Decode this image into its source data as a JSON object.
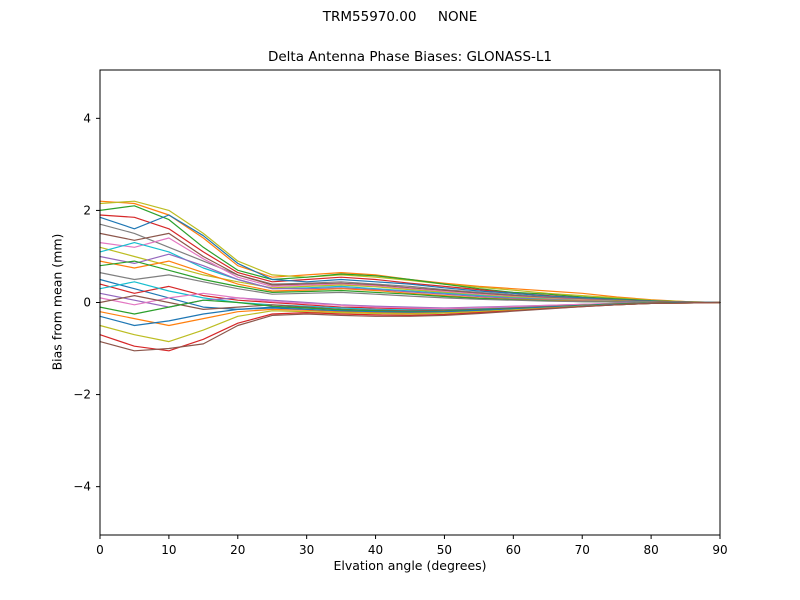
{
  "figure": {
    "suptitle": "TRM55970.00     NONE"
  },
  "chart_data": {
    "type": "line",
    "title": "Delta Antenna Phase Biases: GLONASS-L1",
    "xlabel": "Elvation angle (degrees)",
    "ylabel": "Bias from mean (mm)",
    "xlim": [
      0,
      90
    ],
    "ylim": [
      -5.05,
      5.05
    ],
    "xticks": [
      0,
      10,
      20,
      30,
      40,
      50,
      60,
      70,
      80,
      90
    ],
    "xticklabels": [
      "0",
      "10",
      "20",
      "30",
      "40",
      "50",
      "60",
      "70",
      "80",
      "90"
    ],
    "yticks": [
      -4,
      -2,
      0,
      2,
      4
    ],
    "yticklabels": [
      "−4",
      "−2",
      "0",
      "2",
      "4"
    ],
    "grid": false,
    "legend": "none",
    "x": [
      0,
      5,
      10,
      15,
      20,
      25,
      30,
      35,
      40,
      45,
      50,
      55,
      60,
      65,
      70,
      75,
      80,
      85,
      90
    ],
    "series": [
      {
        "color": "#ff7f0e",
        "values": [
          2.2,
          2.15,
          1.9,
          1.4,
          0.8,
          0.55,
          0.6,
          0.65,
          0.6,
          0.5,
          0.42,
          0.35,
          0.3,
          0.25,
          0.2,
          0.12,
          0.06,
          0.02,
          0.0
        ]
      },
      {
        "color": "#bcbd22",
        "values": [
          2.15,
          2.2,
          2.0,
          1.5,
          0.9,
          0.6,
          0.55,
          0.6,
          0.55,
          0.48,
          0.4,
          0.33,
          0.27,
          0.2,
          0.15,
          0.1,
          0.05,
          0.02,
          0.0
        ]
      },
      {
        "color": "#2ca02c",
        "values": [
          2.0,
          2.1,
          1.8,
          1.2,
          0.7,
          0.5,
          0.55,
          0.62,
          0.58,
          0.5,
          0.4,
          0.3,
          0.22,
          0.18,
          0.12,
          0.08,
          0.04,
          0.01,
          0.0
        ]
      },
      {
        "color": "#d62728",
        "values": [
          1.9,
          1.85,
          1.6,
          1.1,
          0.65,
          0.45,
          0.5,
          0.55,
          0.5,
          0.42,
          0.35,
          0.28,
          0.2,
          0.15,
          0.1,
          0.06,
          0.03,
          0.01,
          0.0
        ]
      },
      {
        "color": "#1f77b4",
        "values": [
          1.85,
          1.6,
          1.9,
          1.45,
          0.85,
          0.5,
          0.45,
          0.5,
          0.45,
          0.4,
          0.32,
          0.25,
          0.2,
          0.14,
          0.1,
          0.06,
          0.03,
          0.01,
          0.0
        ]
      },
      {
        "color": "#7f7f7f",
        "values": [
          1.7,
          1.5,
          1.2,
          0.9,
          0.6,
          0.4,
          0.42,
          0.45,
          0.4,
          0.35,
          0.28,
          0.22,
          0.17,
          0.12,
          0.08,
          0.05,
          0.02,
          0.01,
          0.0
        ]
      },
      {
        "color": "#8c564b",
        "values": [
          1.5,
          1.35,
          1.5,
          1.0,
          0.6,
          0.38,
          0.4,
          0.42,
          0.38,
          0.32,
          0.26,
          0.2,
          0.15,
          0.1,
          0.07,
          0.04,
          0.02,
          0.01,
          0.0
        ]
      },
      {
        "color": "#e377c2",
        "values": [
          1.3,
          1.2,
          1.4,
          0.95,
          0.55,
          0.35,
          0.38,
          0.4,
          0.36,
          0.3,
          0.24,
          0.18,
          0.13,
          0.09,
          0.06,
          0.03,
          0.01,
          0.0,
          0.0
        ]
      },
      {
        "color": "#bcbd22",
        "values": [
          1.2,
          1.0,
          0.8,
          0.6,
          0.45,
          0.32,
          0.35,
          0.38,
          0.34,
          0.28,
          0.22,
          0.16,
          0.12,
          0.08,
          0.05,
          0.03,
          0.01,
          0.0,
          0.0
        ]
      },
      {
        "color": "#17becf",
        "values": [
          1.1,
          1.3,
          1.1,
          0.75,
          0.5,
          0.3,
          0.32,
          0.35,
          0.3,
          0.25,
          0.2,
          0.15,
          0.1,
          0.07,
          0.04,
          0.02,
          0.01,
          0.0,
          0.0
        ]
      },
      {
        "color": "#9467bd",
        "values": [
          1.0,
          0.85,
          1.05,
          0.8,
          0.5,
          0.3,
          0.3,
          0.32,
          0.28,
          0.23,
          0.18,
          0.13,
          0.09,
          0.06,
          0.04,
          0.02,
          0.01,
          0.0,
          0.0
        ]
      },
      {
        "color": "#ff7f0e",
        "values": [
          0.9,
          0.75,
          0.9,
          0.65,
          0.4,
          0.25,
          0.27,
          0.3,
          0.26,
          0.2,
          0.15,
          0.1,
          0.07,
          0.05,
          0.03,
          0.01,
          0.0,
          0.0,
          0.0
        ]
      },
      {
        "color": "#2ca02c",
        "values": [
          0.8,
          0.9,
          0.7,
          0.5,
          0.35,
          0.22,
          0.24,
          0.26,
          0.22,
          0.18,
          0.13,
          0.09,
          0.06,
          0.04,
          0.02,
          0.01,
          0.0,
          0.0,
          0.0
        ]
      },
      {
        "color": "#7f7f7f",
        "values": [
          0.65,
          0.5,
          0.6,
          0.45,
          0.3,
          0.18,
          0.2,
          0.22,
          0.18,
          0.14,
          0.1,
          0.07,
          0.05,
          0.03,
          0.02,
          0.01,
          0.0,
          0.0,
          0.0
        ]
      },
      {
        "color": "#1f77b4",
        "values": [
          0.5,
          0.3,
          0.1,
          -0.1,
          -0.15,
          -0.1,
          -0.12,
          -0.15,
          -0.18,
          -0.2,
          -0.2,
          -0.18,
          -0.15,
          -0.12,
          -0.08,
          -0.05,
          -0.02,
          -0.01,
          0.0
        ]
      },
      {
        "color": "#d62728",
        "values": [
          0.4,
          0.2,
          0.35,
          0.15,
          0.05,
          0.0,
          -0.05,
          -0.1,
          -0.12,
          -0.14,
          -0.15,
          -0.13,
          -0.1,
          -0.08,
          -0.05,
          -0.03,
          -0.01,
          0.0,
          0.0
        ]
      },
      {
        "color": "#17becf",
        "values": [
          0.3,
          0.45,
          0.25,
          0.1,
          0.0,
          -0.05,
          -0.08,
          -0.12,
          -0.15,
          -0.16,
          -0.16,
          -0.14,
          -0.11,
          -0.08,
          -0.05,
          -0.03,
          -0.01,
          0.0,
          0.0
        ]
      },
      {
        "color": "#9467bd",
        "values": [
          0.2,
          0.05,
          -0.1,
          0.05,
          0.1,
          0.05,
          0.0,
          -0.05,
          -0.08,
          -0.1,
          -0.12,
          -0.1,
          -0.08,
          -0.06,
          -0.04,
          -0.02,
          -0.01,
          0.0,
          0.0
        ]
      },
      {
        "color": "#e377c2",
        "values": [
          0.1,
          -0.05,
          0.1,
          0.2,
          0.1,
          0.02,
          -0.02,
          -0.06,
          -0.1,
          -0.12,
          -0.13,
          -0.11,
          -0.09,
          -0.06,
          -0.04,
          -0.02,
          -0.01,
          0.0,
          0.0
        ]
      },
      {
        "color": "#8c564b",
        "values": [
          0.0,
          0.15,
          0.0,
          -0.15,
          -0.1,
          -0.05,
          -0.1,
          -0.15,
          -0.17,
          -0.18,
          -0.17,
          -0.15,
          -0.12,
          -0.09,
          -0.06,
          -0.03,
          -0.01,
          0.0,
          0.0
        ]
      },
      {
        "color": "#2ca02c",
        "values": [
          -0.1,
          -0.25,
          -0.1,
          0.05,
          0.0,
          -0.08,
          -0.12,
          -0.16,
          -0.18,
          -0.2,
          -0.19,
          -0.16,
          -0.13,
          -0.1,
          -0.06,
          -0.03,
          -0.01,
          0.0,
          0.0
        ]
      },
      {
        "color": "#ff7f0e",
        "values": [
          -0.2,
          -0.35,
          -0.5,
          -0.35,
          -0.2,
          -0.15,
          -0.17,
          -0.2,
          -0.22,
          -0.23,
          -0.22,
          -0.19,
          -0.15,
          -0.11,
          -0.07,
          -0.04,
          -0.02,
          -0.01,
          0.0
        ]
      },
      {
        "color": "#1f77b4",
        "values": [
          -0.3,
          -0.5,
          -0.4,
          -0.25,
          -0.15,
          -0.12,
          -0.15,
          -0.18,
          -0.2,
          -0.21,
          -0.2,
          -0.17,
          -0.14,
          -0.1,
          -0.07,
          -0.04,
          -0.02,
          0.0,
          0.0
        ]
      },
      {
        "color": "#bcbd22",
        "values": [
          -0.5,
          -0.7,
          -0.85,
          -0.6,
          -0.3,
          -0.18,
          -0.2,
          -0.22,
          -0.24,
          -0.25,
          -0.23,
          -0.2,
          -0.16,
          -0.12,
          -0.08,
          -0.05,
          -0.02,
          -0.01,
          0.0
        ]
      },
      {
        "color": "#d62728",
        "values": [
          -0.7,
          -0.95,
          -1.05,
          -0.8,
          -0.45,
          -0.25,
          -0.22,
          -0.25,
          -0.27,
          -0.28,
          -0.26,
          -0.22,
          -0.18,
          -0.13,
          -0.09,
          -0.05,
          -0.02,
          -0.01,
          0.0
        ]
      },
      {
        "color": "#8c564b",
        "values": [
          -0.85,
          -1.05,
          -1.0,
          -0.9,
          -0.5,
          -0.28,
          -0.25,
          -0.28,
          -0.3,
          -0.3,
          -0.28,
          -0.24,
          -0.19,
          -0.14,
          -0.09,
          -0.05,
          -0.02,
          -0.01,
          0.0
        ]
      }
    ]
  }
}
